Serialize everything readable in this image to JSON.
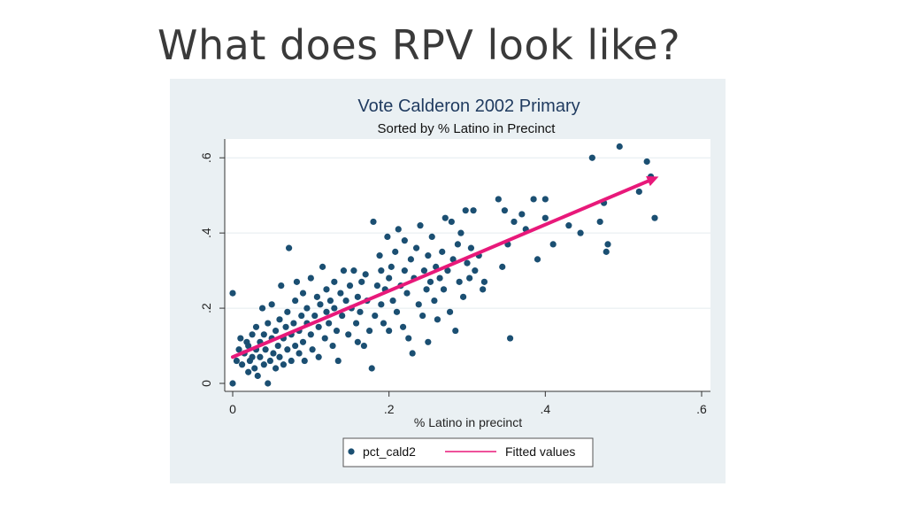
{
  "slide": {
    "title": "What does RPV look like?"
  },
  "colors": {
    "points": "#1b4f72",
    "fit_line": "#e8197a",
    "arrow": "#e8197a",
    "panel": "#eaf0f3",
    "plot": "#ffffff"
  },
  "chart_data": {
    "type": "scatter",
    "title": "Vote Calderon 2002 Primary",
    "subtitle": "Sorted by % Latino in Precinct",
    "xlabel": "% Latino in precinct",
    "ylabel": "",
    "xlim": [
      0,
      0.6
    ],
    "ylim": [
      0,
      0.65
    ],
    "x_ticks": [
      0,
      0.2,
      0.4,
      0.6
    ],
    "x_tick_labels": [
      "0",
      ".2",
      ".4",
      ".6"
    ],
    "y_ticks": [
      0,
      0.2,
      0.4,
      0.6
    ],
    "y_tick_labels": [
      "0",
      ".2",
      ".4",
      ".6"
    ],
    "grid": true,
    "legend": {
      "placement": "bottom",
      "entries": [
        "pct_cald2",
        "Fitted values"
      ]
    },
    "series": [
      {
        "name": "pct_cald2",
        "kind": "points",
        "points": [
          [
            0.0,
            0.0
          ],
          [
            0.0,
            0.24
          ],
          [
            0.005,
            0.06
          ],
          [
            0.008,
            0.09
          ],
          [
            0.01,
            0.12
          ],
          [
            0.012,
            0.05
          ],
          [
            0.015,
            0.08
          ],
          [
            0.018,
            0.11
          ],
          [
            0.02,
            0.03
          ],
          [
            0.02,
            0.1
          ],
          [
            0.022,
            0.06
          ],
          [
            0.025,
            0.13
          ],
          [
            0.025,
            0.07
          ],
          [
            0.028,
            0.04
          ],
          [
            0.03,
            0.09
          ],
          [
            0.03,
            0.15
          ],
          [
            0.032,
            0.02
          ],
          [
            0.035,
            0.11
          ],
          [
            0.035,
            0.07
          ],
          [
            0.038,
            0.2
          ],
          [
            0.04,
            0.05
          ],
          [
            0.04,
            0.13
          ],
          [
            0.042,
            0.09
          ],
          [
            0.045,
            0.16
          ],
          [
            0.045,
            0.0
          ],
          [
            0.048,
            0.06
          ],
          [
            0.05,
            0.12
          ],
          [
            0.05,
            0.21
          ],
          [
            0.052,
            0.08
          ],
          [
            0.055,
            0.14
          ],
          [
            0.055,
            0.04
          ],
          [
            0.058,
            0.1
          ],
          [
            0.06,
            0.17
          ],
          [
            0.06,
            0.07
          ],
          [
            0.062,
            0.26
          ],
          [
            0.065,
            0.12
          ],
          [
            0.065,
            0.05
          ],
          [
            0.068,
            0.15
          ],
          [
            0.07,
            0.09
          ],
          [
            0.07,
            0.19
          ],
          [
            0.072,
            0.36
          ],
          [
            0.075,
            0.13
          ],
          [
            0.075,
            0.06
          ],
          [
            0.078,
            0.16
          ],
          [
            0.08,
            0.1
          ],
          [
            0.08,
            0.22
          ],
          [
            0.082,
            0.27
          ],
          [
            0.085,
            0.14
          ],
          [
            0.085,
            0.08
          ],
          [
            0.088,
            0.18
          ],
          [
            0.09,
            0.11
          ],
          [
            0.09,
            0.24
          ],
          [
            0.092,
            0.06
          ],
          [
            0.095,
            0.16
          ],
          [
            0.095,
            0.2
          ],
          [
            0.1,
            0.13
          ],
          [
            0.1,
            0.28
          ],
          [
            0.102,
            0.09
          ],
          [
            0.105,
            0.18
          ],
          [
            0.108,
            0.23
          ],
          [
            0.11,
            0.15
          ],
          [
            0.11,
            0.07
          ],
          [
            0.112,
            0.21
          ],
          [
            0.115,
            0.31
          ],
          [
            0.118,
            0.12
          ],
          [
            0.12,
            0.19
          ],
          [
            0.12,
            0.25
          ],
          [
            0.123,
            0.16
          ],
          [
            0.125,
            0.22
          ],
          [
            0.128,
            0.1
          ],
          [
            0.13,
            0.2
          ],
          [
            0.13,
            0.27
          ],
          [
            0.133,
            0.14
          ],
          [
            0.135,
            0.06
          ],
          [
            0.138,
            0.24
          ],
          [
            0.14,
            0.18
          ],
          [
            0.142,
            0.3
          ],
          [
            0.145,
            0.22
          ],
          [
            0.148,
            0.13
          ],
          [
            0.15,
            0.26
          ],
          [
            0.152,
            0.2
          ],
          [
            0.155,
            0.3
          ],
          [
            0.158,
            0.16
          ],
          [
            0.16,
            0.23
          ],
          [
            0.16,
            0.11
          ],
          [
            0.163,
            0.19
          ],
          [
            0.165,
            0.27
          ],
          [
            0.168,
            0.1
          ],
          [
            0.17,
            0.29
          ],
          [
            0.172,
            0.22
          ],
          [
            0.175,
            0.14
          ],
          [
            0.178,
            0.04
          ],
          [
            0.18,
            0.43
          ],
          [
            0.182,
            0.18
          ],
          [
            0.185,
            0.26
          ],
          [
            0.188,
            0.34
          ],
          [
            0.19,
            0.21
          ],
          [
            0.19,
            0.3
          ],
          [
            0.193,
            0.16
          ],
          [
            0.195,
            0.25
          ],
          [
            0.198,
            0.39
          ],
          [
            0.2,
            0.28
          ],
          [
            0.2,
            0.14
          ],
          [
            0.203,
            0.31
          ],
          [
            0.205,
            0.22
          ],
          [
            0.208,
            0.35
          ],
          [
            0.21,
            0.19
          ],
          [
            0.212,
            0.41
          ],
          [
            0.215,
            0.26
          ],
          [
            0.218,
            0.15
          ],
          [
            0.22,
            0.3
          ],
          [
            0.22,
            0.38
          ],
          [
            0.223,
            0.24
          ],
          [
            0.225,
            0.12
          ],
          [
            0.228,
            0.33
          ],
          [
            0.23,
            0.08
          ],
          [
            0.232,
            0.28
          ],
          [
            0.235,
            0.36
          ],
          [
            0.238,
            0.21
          ],
          [
            0.24,
            0.42
          ],
          [
            0.243,
            0.18
          ],
          [
            0.245,
            0.3
          ],
          [
            0.248,
            0.25
          ],
          [
            0.25,
            0.34
          ],
          [
            0.25,
            0.11
          ],
          [
            0.253,
            0.27
          ],
          [
            0.255,
            0.39
          ],
          [
            0.258,
            0.22
          ],
          [
            0.26,
            0.31
          ],
          [
            0.262,
            0.17
          ],
          [
            0.265,
            0.28
          ],
          [
            0.268,
            0.35
          ],
          [
            0.27,
            0.25
          ],
          [
            0.272,
            0.44
          ],
          [
            0.275,
            0.3
          ],
          [
            0.278,
            0.19
          ],
          [
            0.28,
            0.43
          ],
          [
            0.282,
            0.33
          ],
          [
            0.285,
            0.14
          ],
          [
            0.288,
            0.37
          ],
          [
            0.29,
            0.27
          ],
          [
            0.292,
            0.4
          ],
          [
            0.295,
            0.23
          ],
          [
            0.298,
            0.46
          ],
          [
            0.3,
            0.32
          ],
          [
            0.303,
            0.28
          ],
          [
            0.305,
            0.36
          ],
          [
            0.308,
            0.46
          ],
          [
            0.31,
            0.3
          ],
          [
            0.315,
            0.34
          ],
          [
            0.32,
            0.25
          ],
          [
            0.322,
            0.27
          ],
          [
            0.34,
            0.49
          ],
          [
            0.345,
            0.31
          ],
          [
            0.348,
            0.46
          ],
          [
            0.352,
            0.37
          ],
          [
            0.355,
            0.12
          ],
          [
            0.36,
            0.43
          ],
          [
            0.37,
            0.45
          ],
          [
            0.375,
            0.41
          ],
          [
            0.385,
            0.49
          ],
          [
            0.39,
            0.33
          ],
          [
            0.4,
            0.49
          ],
          [
            0.4,
            0.44
          ],
          [
            0.41,
            0.37
          ],
          [
            0.43,
            0.42
          ],
          [
            0.445,
            0.4
          ],
          [
            0.46,
            0.6
          ],
          [
            0.47,
            0.43
          ],
          [
            0.475,
            0.48
          ],
          [
            0.478,
            0.35
          ],
          [
            0.48,
            0.37
          ],
          [
            0.495,
            0.63
          ],
          [
            0.52,
            0.51
          ],
          [
            0.53,
            0.59
          ],
          [
            0.535,
            0.55
          ],
          [
            0.54,
            0.44
          ]
        ]
      },
      {
        "name": "Fitted values",
        "kind": "line",
        "points": [
          [
            0.0,
            0.07
          ],
          [
            0.545,
            0.55
          ]
        ]
      }
    ]
  }
}
